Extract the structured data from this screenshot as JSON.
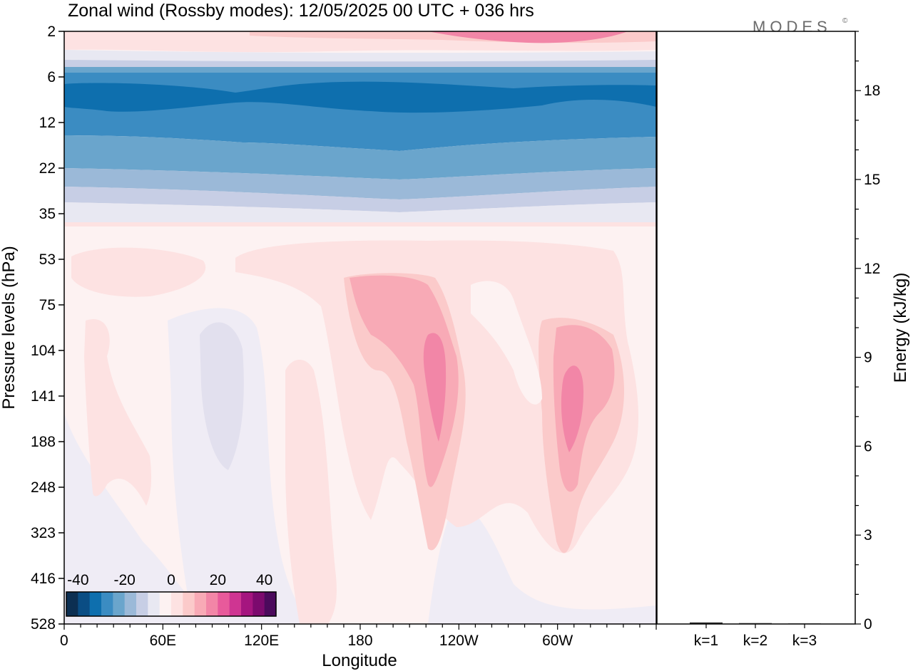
{
  "title": "Zonal wind (Rossby modes):  12/05/2025  00 UTC  + 036 hrs",
  "brand": {
    "name": "MODES",
    "mark": "©"
  },
  "colors": {
    "palette": [
      "#0c2f52",
      "#0a4d84",
      "#0e6fae",
      "#3b8cc2",
      "#6aa5cc",
      "#9bb9d8",
      "#c7cee5",
      "#e8e8f2",
      "#fdf2f2",
      "#fde2e2",
      "#fbcaca",
      "#f8aab6",
      "#f286a7",
      "#e85a9b",
      "#cf3592",
      "#a5157f",
      "#7c0a6e",
      "#4b0a5c"
    ]
  },
  "chart_data": [
    {
      "type": "heatmap",
      "title": "Zonal wind (Rossby modes):  12/05/2025  00 UTC  + 036 hrs",
      "xlabel": "Longitude",
      "ylabel": "Pressure levels (hPa)",
      "x_ticks": [
        "0",
        "60E",
        "120E",
        "180",
        "120W",
        "60W"
      ],
      "x_tick_degrees": [
        0,
        60,
        120,
        180,
        240,
        300
      ],
      "x_range": [
        0,
        360
      ],
      "y_ticks": [
        "2",
        "6",
        "12",
        "22",
        "35",
        "53",
        "75",
        "104",
        "141",
        "188",
        "248",
        "323",
        "416",
        "528"
      ],
      "y_scale": "model levels, top 2 hPa to bottom 528 hPa",
      "colorbar": {
        "labels": [
          "-40",
          "-20",
          "0",
          "20",
          "40"
        ],
        "range": [
          -45,
          45
        ],
        "step": 5,
        "placement": "bottom-left"
      },
      "layers": [
        {
          "level_range": [
            "2",
            "6"
          ],
          "value": 5,
          "note": "weak westerlies, max near 75W"
        },
        {
          "level_range": [
            "6",
            "12"
          ],
          "value": -35
        },
        {
          "level_range": [
            "12",
            "22"
          ],
          "value": -25
        },
        {
          "level_range": [
            "22",
            "35"
          ],
          "value": -10
        },
        {
          "level_range": [
            "35",
            "528"
          ],
          "value": 5
        }
      ],
      "features": [
        {
          "region": "near 160W, 53-248 hPa",
          "value": 25,
          "sign": "westerly"
        },
        {
          "region": "near 75W, 104-248 hPa",
          "value": 25,
          "sign": "westerly"
        },
        {
          "region": "near 80E, 104-188 hPa",
          "value": -3,
          "sign": "easterly"
        },
        {
          "region": "near 15E, 75-248 hPa",
          "value": 10,
          "sign": "westerly"
        }
      ]
    },
    {
      "type": "bar",
      "categories": [
        "k=1",
        "k=2",
        "k=3"
      ],
      "values": [
        0.05,
        0.03,
        0.02
      ],
      "ylabel": "Energy (kJ/kg)",
      "y_ticks": [
        "0",
        "3",
        "6",
        "9",
        "12",
        "15",
        "18"
      ],
      "ylim": [
        0,
        20
      ]
    }
  ]
}
